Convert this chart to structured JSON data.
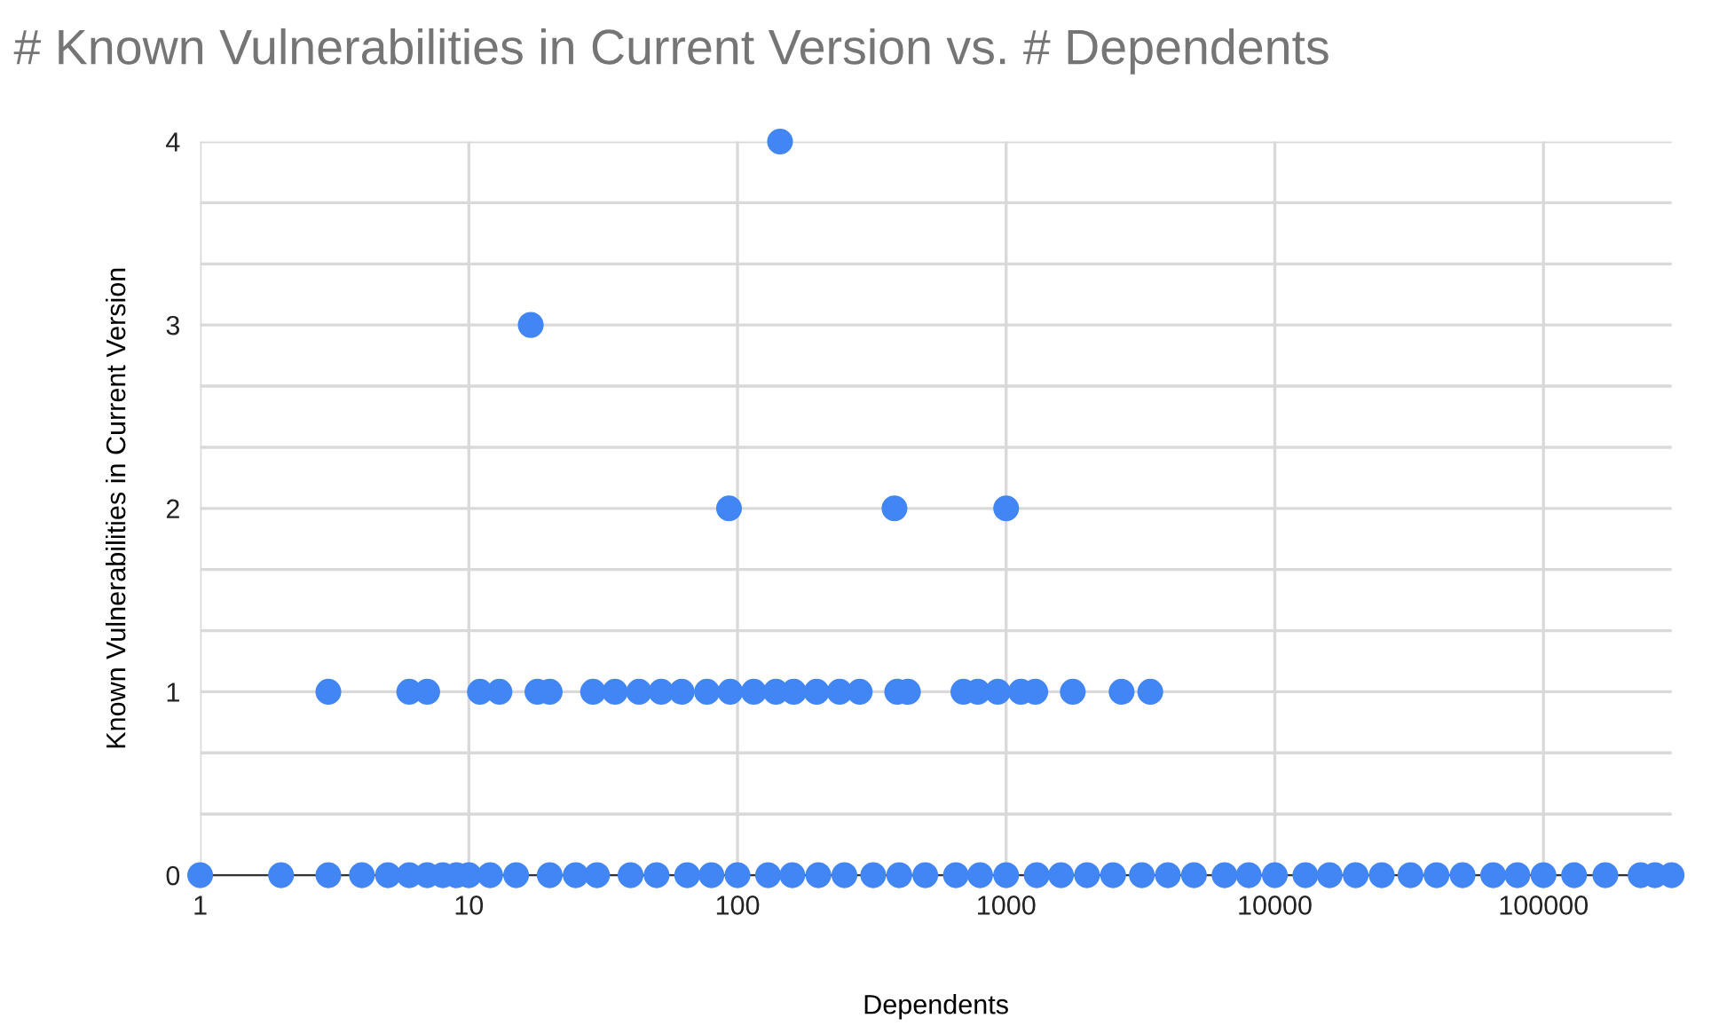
{
  "chart_data": {
    "type": "scatter",
    "title": "# Known Vulnerabilities in Current Version vs. # Dependents",
    "xlabel": "Dependents",
    "ylabel": "Known Vulnerabilities in Current Version",
    "series": [
      {
        "color": "#4285f4",
        "x": [
          17,
          144,
          93,
          384,
          1000
        ],
        "values": [
          3,
          4,
          2,
          2,
          2
        ]
      },
      {
        "color": "#4285f4",
        "x": [
          3,
          6,
          7,
          11,
          13,
          18,
          20,
          29,
          35,
          43,
          52,
          62,
          77,
          94,
          115,
          139,
          162,
          197,
          240,
          285,
          393,
          431,
          693,
          784,
          931,
          1135,
          1284,
          1770,
          2690,
          3440
        ],
        "values": [
          1,
          1,
          1,
          1,
          1,
          1,
          1,
          1,
          1,
          1,
          1,
          1,
          1,
          1,
          1,
          1,
          1,
          1,
          1,
          1,
          1,
          1,
          1,
          1,
          1,
          1,
          1,
          1,
          1,
          1
        ]
      },
      {
        "color": "#4285f4",
        "x": [
          1,
          2,
          3,
          4,
          5,
          6,
          7,
          8,
          9,
          10,
          12,
          15,
          20,
          25,
          30,
          40,
          50,
          65,
          80,
          100,
          130,
          160,
          200,
          250,
          320,
          400,
          500,
          650,
          800,
          1000,
          1300,
          1600,
          2000,
          2500,
          3200,
          4000,
          5000,
          6500,
          8000,
          10000,
          13000,
          16000,
          20000,
          25000,
          32000,
          40000,
          50000,
          65000,
          80000,
          100000,
          130000,
          170000,
          230000,
          260000,
          300000
        ],
        "values": [
          0,
          0,
          0,
          0,
          0,
          0,
          0,
          0,
          0,
          0,
          0,
          0,
          0,
          0,
          0,
          0,
          0,
          0,
          0,
          0,
          0,
          0,
          0,
          0,
          0,
          0,
          0,
          0,
          0,
          0,
          0,
          0,
          0,
          0,
          0,
          0,
          0,
          0,
          0,
          0,
          0,
          0,
          0,
          0,
          0,
          0,
          0,
          0,
          0,
          0,
          0,
          0,
          0,
          0,
          0
        ]
      }
    ],
    "log": "x",
    "xlim": [
      1,
      300000
    ],
    "xticks": [
      1,
      10,
      100,
      1000,
      10000,
      100000
    ],
    "ylim": [
      0,
      4
    ],
    "yticks": [
      0,
      {
        "value": 0.333,
        "label": null
      },
      {
        "value": 0.667,
        "label": null
      },
      1,
      {
        "value": 1.333,
        "label": null
      },
      {
        "value": 1.667,
        "label": null
      },
      2,
      {
        "value": 2.333,
        "label": null
      },
      {
        "value": 2.667,
        "label": null
      },
      3,
      {
        "value": 3.333,
        "label": null
      },
      {
        "value": 3.667,
        "label": null
      },
      4
    ],
    "grid": true,
    "marker": "circle",
    "legend": false
  }
}
